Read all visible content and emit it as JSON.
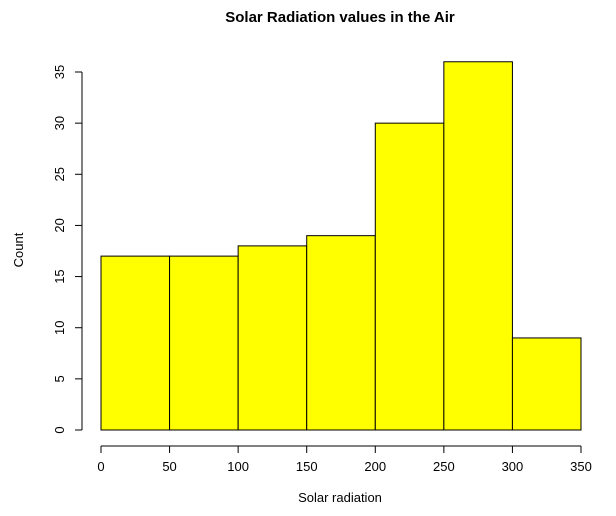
{
  "chart_data": {
    "type": "bar",
    "subtype": "histogram",
    "title": "Solar Radiation values in the Air",
    "xlabel": "Solar radiation",
    "ylabel": "Count",
    "bins": [
      [
        0,
        50
      ],
      [
        50,
        100
      ],
      [
        100,
        150
      ],
      [
        150,
        200
      ],
      [
        200,
        250
      ],
      [
        250,
        300
      ],
      [
        300,
        350
      ]
    ],
    "values": [
      17,
      17,
      18,
      19,
      30,
      36,
      9
    ],
    "xlim": [
      0,
      350
    ],
    "ylim": [
      0,
      35
    ],
    "xticks": [
      "0",
      "50",
      "100",
      "150",
      "200",
      "250",
      "300",
      "350"
    ],
    "yticks": [
      "0",
      "5",
      "10",
      "15",
      "20",
      "25",
      "30",
      "35"
    ],
    "bar_color": "#ffff00",
    "grid": false
  }
}
